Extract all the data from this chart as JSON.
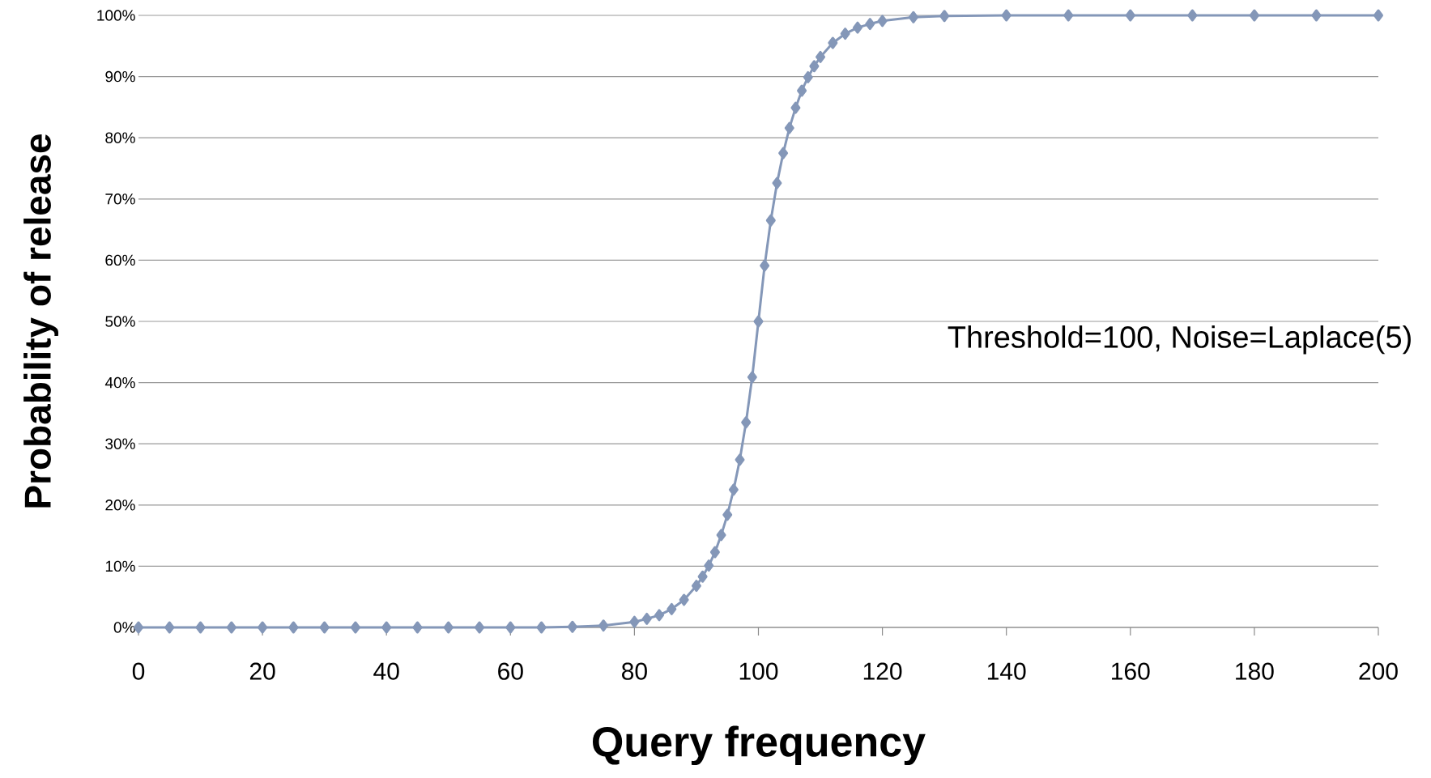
{
  "chart_data": {
    "type": "line",
    "xlabel": "Query frequency",
    "ylabel": "Probability of release",
    "annotations": [
      "Threshold=100, Noise=Laplace(5)"
    ],
    "x": [
      0,
      5,
      10,
      15,
      20,
      25,
      30,
      35,
      40,
      45,
      50,
      55,
      60,
      65,
      70,
      75,
      80,
      82,
      84,
      86,
      88,
      90,
      91,
      92,
      93,
      94,
      95,
      96,
      97,
      98,
      99,
      100,
      101,
      102,
      103,
      104,
      105,
      106,
      107,
      108,
      109,
      110,
      112,
      114,
      116,
      118,
      120,
      125,
      130,
      140,
      150,
      160,
      170,
      180,
      190,
      200
    ],
    "series": [
      {
        "color": "#8497b8",
        "values": [
          0,
          0,
          0,
          0,
          0,
          0,
          0,
          0,
          0,
          0,
          0,
          0,
          0,
          0,
          0.1,
          0.3,
          0.9,
          1.4,
          2.0,
          3.0,
          4.5,
          6.8,
          8.3,
          10.1,
          12.3,
          15.1,
          18.4,
          22.5,
          27.4,
          33.5,
          40.9,
          50,
          59.1,
          66.5,
          72.6,
          77.5,
          81.6,
          84.9,
          87.7,
          89.9,
          91.7,
          93.2,
          95.5,
          97.0,
          98.0,
          98.6,
          99.1,
          99.7,
          99.9,
          100,
          100,
          100,
          100,
          100,
          100,
          100
        ]
      }
    ],
    "xlim": [
      0,
      200
    ],
    "ylim": [
      0,
      100
    ],
    "xticks": [
      0,
      20,
      40,
      60,
      80,
      100,
      120,
      140,
      160,
      180,
      200
    ],
    "yticks": [
      {
        "value": 0,
        "label": "0%"
      },
      {
        "value": 10,
        "label": "10%"
      },
      {
        "value": 20,
        "label": "20%"
      },
      {
        "value": 30,
        "label": "30%"
      },
      {
        "value": 40,
        "label": "40%"
      },
      {
        "value": 50,
        "label": "50%"
      },
      {
        "value": 60,
        "label": "60%"
      },
      {
        "value": 70,
        "label": "70%"
      },
      {
        "value": 80,
        "label": "80%"
      },
      {
        "value": 90,
        "label": "90%"
      },
      {
        "value": 100,
        "label": "100%"
      }
    ],
    "grid": "y",
    "marker": "diamond"
  }
}
